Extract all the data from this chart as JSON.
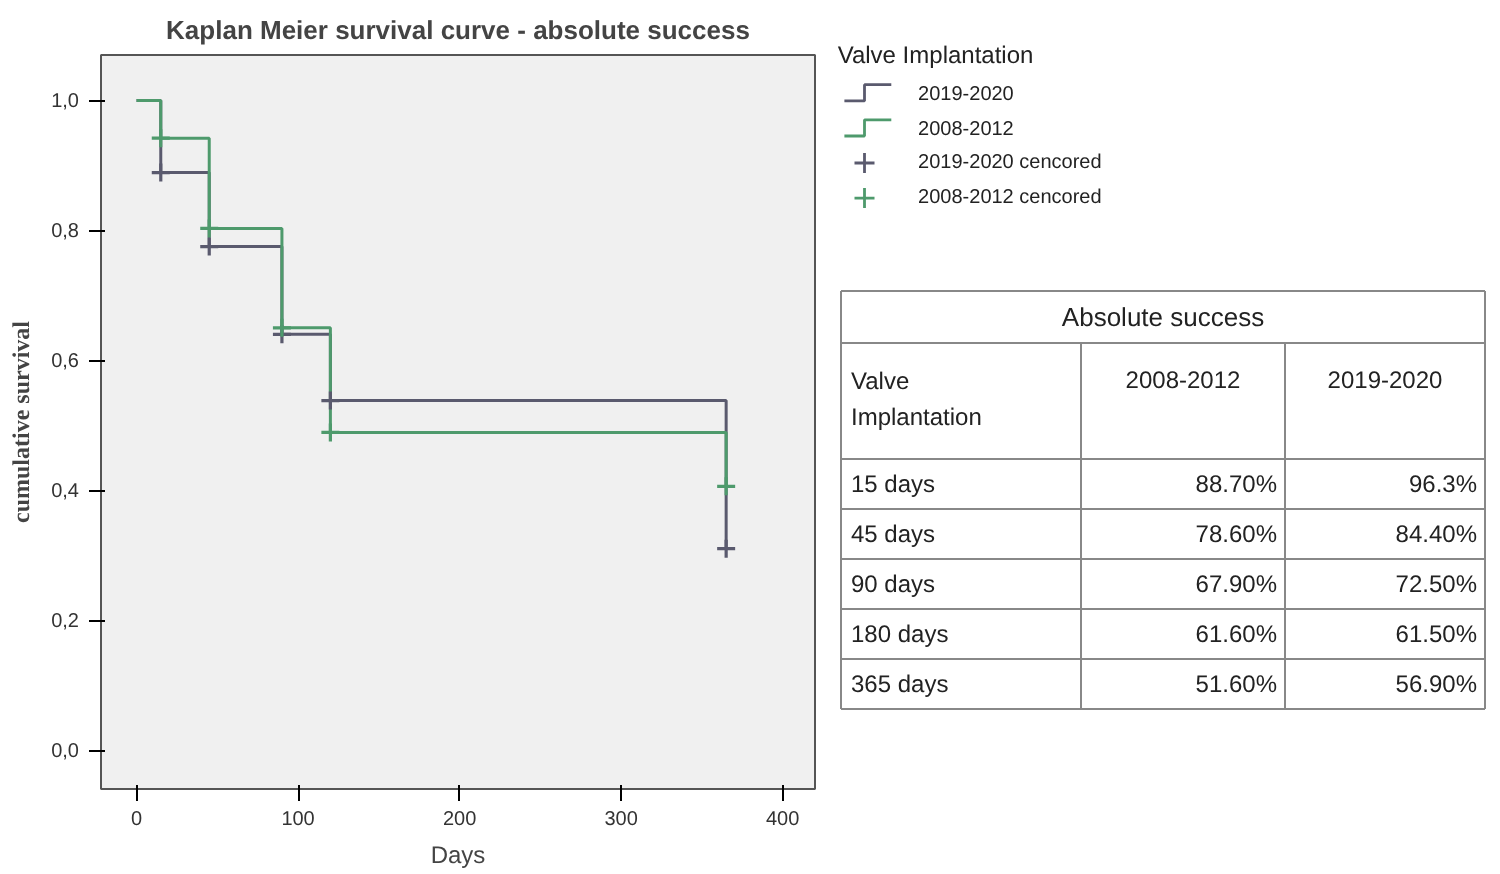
{
  "chart_data": [
    {
      "type": "step",
      "title": "Kaplan Meier survival curve - absolute success",
      "xlabel": "Days",
      "ylabel": "cumulative survival",
      "legend_title": "Valve Implantation",
      "legend": "right",
      "grid": false,
      "xlim": [
        -22,
        420
      ],
      "ylim": [
        -0.06,
        1.07
      ],
      "xticks": [
        0,
        100,
        200,
        300,
        400
      ],
      "yticks": [
        {
          "value": 0.0,
          "label": "0,0"
        },
        {
          "value": 0.2,
          "label": "0,2"
        },
        {
          "value": 0.4,
          "label": "0,4"
        },
        {
          "value": 0.6,
          "label": "0,6"
        },
        {
          "value": 0.8,
          "label": "0,8"
        },
        {
          "value": 1.0,
          "label": "1,0"
        }
      ],
      "series": [
        {
          "name": "2019-2020",
          "color": "#5a5a6e",
          "type": "step",
          "marker": "none",
          "x": [
            0,
            15,
            45,
            90,
            120,
            365
          ],
          "values": [
            1.0,
            0.889,
            0.775,
            0.64,
            0.538,
            0.31
          ]
        },
        {
          "name": "2008-2012",
          "color": "#4e9a6c",
          "type": "step",
          "marker": "none",
          "x": [
            0,
            15,
            45,
            90,
            120,
            365
          ],
          "values": [
            1.0,
            0.942,
            0.803,
            0.65,
            0.489,
            0.406
          ]
        },
        {
          "name": "2019-2020 cencored",
          "color": "#5a5a6e",
          "type": "scatter",
          "marker": "cross",
          "x": [
            15,
            45,
            90,
            120,
            365
          ],
          "values": [
            0.889,
            0.775,
            0.64,
            0.538,
            0.31
          ]
        },
        {
          "name": "2008-2012 cencored",
          "color": "#4e9a6c",
          "type": "scatter",
          "marker": "cross",
          "x": [
            15,
            45,
            90,
            120,
            365
          ],
          "values": [
            0.942,
            0.803,
            0.65,
            0.489,
            0.406
          ]
        }
      ]
    },
    {
      "type": "other",
      "title": "Absolute success",
      "categories": [
        "Valve Implantation",
        "2008-2012",
        "2019-2020"
      ],
      "y_categories": [
        "15 days",
        "45 days",
        "90 days",
        "180 days",
        "365 days"
      ],
      "cell_labels": [
        [
          "88.70%",
          "96.3%"
        ],
        [
          "78.60%",
          "84.40%"
        ],
        [
          "67.90%",
          "72.50%"
        ],
        [
          "61.60%",
          "61.50%"
        ],
        [
          "51.60%",
          "56.90%"
        ]
      ]
    }
  ]
}
